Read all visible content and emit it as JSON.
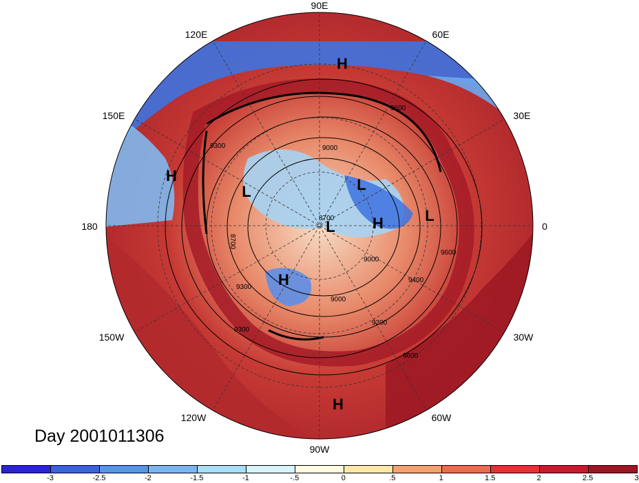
{
  "title": "Day 2001011306",
  "longitude_labels": [
    {
      "key": "lon-90e",
      "text": "90E"
    },
    {
      "key": "lon-60e",
      "text": "60E"
    },
    {
      "key": "lon-120e",
      "text": "120E"
    },
    {
      "key": "lon-150e",
      "text": "150E"
    },
    {
      "key": "lon-30e",
      "text": "30E"
    },
    {
      "key": "lon-180",
      "text": "180"
    },
    {
      "key": "lon-0",
      "text": "0"
    },
    {
      "key": "lon-150w",
      "text": "150W"
    },
    {
      "key": "lon-30w",
      "text": "30W"
    },
    {
      "key": "lon-120w",
      "text": "120W"
    },
    {
      "key": "lon-60w",
      "text": "60W"
    },
    {
      "key": "lon-90w",
      "text": "90W"
    }
  ],
  "pressure_centers": [
    "H",
    "H",
    "L",
    "L",
    "L",
    "H",
    "L",
    "H",
    "H"
  ],
  "contour_labels": [
    "9600",
    "9000",
    "8700",
    "8700",
    "9000",
    "9300",
    "9200",
    "9600",
    "9300",
    "9600",
    "9300",
    "9000",
    "9400"
  ],
  "colorbar": {
    "colors": [
      "#2b24d4",
      "#3a62e0",
      "#5596ea",
      "#7ab6f2",
      "#a8def7",
      "#d7f4fb",
      "#fffbe0",
      "#fde8a6",
      "#f6a16f",
      "#ef6b4d",
      "#e33333",
      "#c31d2c",
      "#a01424"
    ],
    "tick_labels": [
      "-3",
      "-2.5",
      "-2",
      "-1.5",
      "-1",
      "-.5",
      "0",
      ".5",
      "1",
      "1.5",
      "2",
      "2.5",
      "3"
    ]
  }
}
